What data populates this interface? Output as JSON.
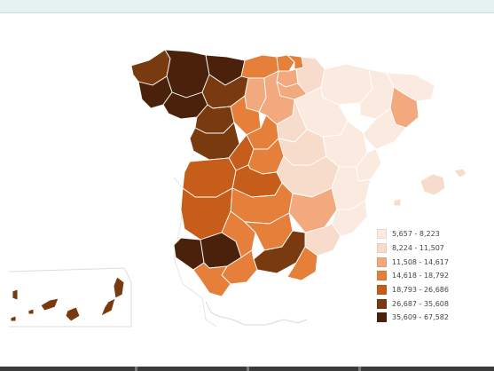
{
  "colors": {
    "c1": "#fbeadf",
    "c2": "#f8dccb",
    "c3": "#f2a97e",
    "c4": "#e57f3a",
    "c5": "#c65d1a",
    "c6": "#7a3a10",
    "c7": "#4a220c"
  },
  "legend": {
    "items": [
      {
        "label": "5,657 - 8,223",
        "color": "#fbeadf"
      },
      {
        "label": "8,224 - 11,507",
        "color": "#f8dccb"
      },
      {
        "label": "11,508 - 14,617",
        "color": "#f2a97e"
      },
      {
        "label": "14,618 - 18,792",
        "color": "#e57f3a"
      },
      {
        "label": "18,793 - 26,686",
        "color": "#c65d1a"
      },
      {
        "label": "26,687 - 35,608",
        "color": "#7a3a10"
      },
      {
        "label": "35,609 - 67,582",
        "color": "#4a220c"
      }
    ]
  }
}
